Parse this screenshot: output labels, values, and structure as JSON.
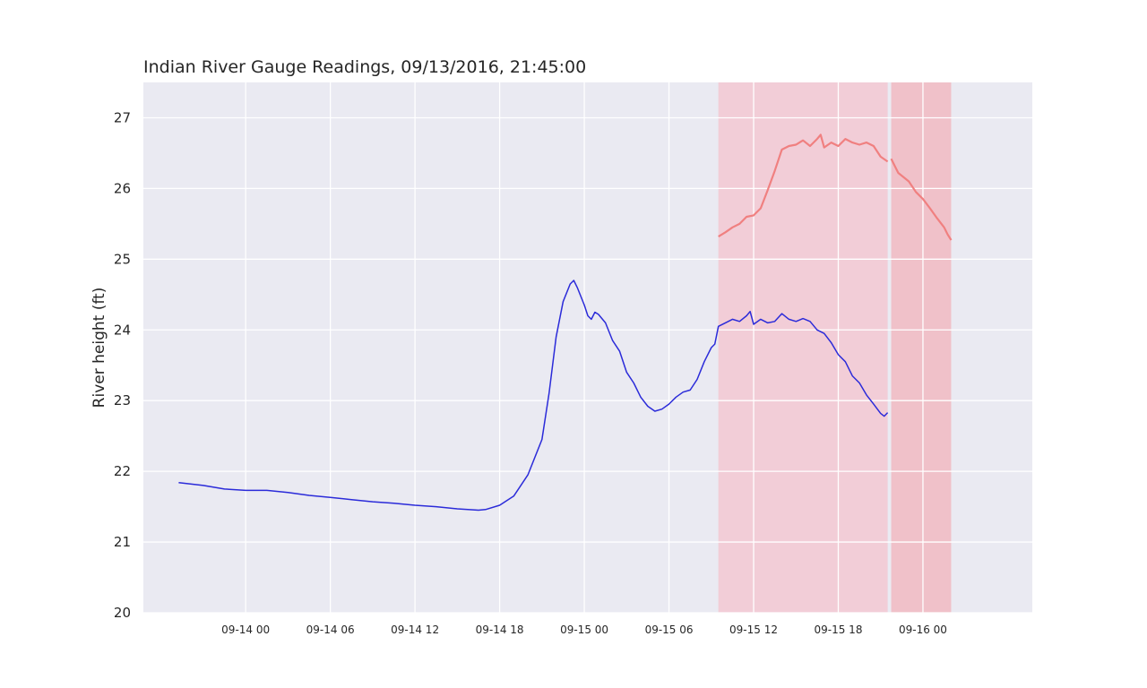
{
  "colors": {
    "plot_bg": "#eaeaf2",
    "grid": "#ffffff",
    "observed": "#2b2bd9",
    "forecast": "#f08080",
    "band_1": "#f4c3cd",
    "band_2": "#f1b3bb"
  },
  "chart_data": {
    "type": "line",
    "title": "Indian River Gauge Readings, 09/13/2016, 21:45:00",
    "xlabel": "",
    "ylabel": "River height (ft)",
    "xlim": [
      "2016-09-13 16:45",
      "2016-09-16 07:45"
    ],
    "ylim": [
      20,
      27.5
    ],
    "grid": true,
    "legend": "none",
    "x_ticks": [
      "2016-09-14 00:00",
      "2016-09-14 06:00",
      "2016-09-14 12:00",
      "2016-09-14 18:00",
      "2016-09-15 00:00",
      "2016-09-15 06:00",
      "2016-09-15 12:00",
      "2016-09-15 18:00",
      "2016-09-16 00:00"
    ],
    "x_tick_labels": [
      "09-14 00",
      "09-14 06",
      "09-14 12",
      "09-14 18",
      "09-15 00",
      "09-15 06",
      "09-15 12",
      "09-15 18",
      "09-16 00"
    ],
    "y_ticks": [
      20,
      21,
      22,
      23,
      24,
      25,
      26,
      27
    ],
    "y_tick_labels": [
      "20",
      "21",
      "22",
      "23",
      "24",
      "25",
      "26",
      "27"
    ],
    "shaded_regions": [
      {
        "x_start": "2016-09-15 09:30",
        "x_end": "2016-09-15 21:30",
        "color": "band_1"
      },
      {
        "x_start": "2016-09-15 21:45",
        "x_end": "2016-09-16 02:00",
        "color": "band_2"
      }
    ],
    "series": [
      {
        "color": "observed",
        "points": [
          [
            "2016-09-13 19:15",
            21.84
          ],
          [
            "2016-09-13 21:00",
            21.8
          ],
          [
            "2016-09-13 22:30",
            21.75
          ],
          [
            "2016-09-14 00:00",
            21.73
          ],
          [
            "2016-09-14 01:30",
            21.73
          ],
          [
            "2016-09-14 03:00",
            21.7
          ],
          [
            "2016-09-14 04:30",
            21.66
          ],
          [
            "2016-09-14 06:00",
            21.63
          ],
          [
            "2016-09-14 07:30",
            21.6
          ],
          [
            "2016-09-14 09:00",
            21.57
          ],
          [
            "2016-09-14 10:30",
            21.55
          ],
          [
            "2016-09-14 12:00",
            21.52
          ],
          [
            "2016-09-14 13:30",
            21.5
          ],
          [
            "2016-09-14 15:00",
            21.47
          ],
          [
            "2016-09-14 16:30",
            21.45
          ],
          [
            "2016-09-14 17:00",
            21.46
          ],
          [
            "2016-09-14 18:00",
            21.52
          ],
          [
            "2016-09-14 19:00",
            21.65
          ],
          [
            "2016-09-14 20:00",
            21.95
          ],
          [
            "2016-09-14 21:00",
            22.45
          ],
          [
            "2016-09-14 21:30",
            23.1
          ],
          [
            "2016-09-14 22:00",
            23.9
          ],
          [
            "2016-09-14 22:30",
            24.4
          ],
          [
            "2016-09-14 23:00",
            24.65
          ],
          [
            "2016-09-14 23:15",
            24.7
          ],
          [
            "2016-09-14 23:30",
            24.6
          ],
          [
            "2016-09-15 00:00",
            24.35
          ],
          [
            "2016-09-15 00:15",
            24.2
          ],
          [
            "2016-09-15 00:30",
            24.15
          ],
          [
            "2016-09-15 00:45",
            24.25
          ],
          [
            "2016-09-15 01:00",
            24.22
          ],
          [
            "2016-09-15 01:30",
            24.1
          ],
          [
            "2016-09-15 02:00",
            23.85
          ],
          [
            "2016-09-15 02:30",
            23.7
          ],
          [
            "2016-09-15 03:00",
            23.4
          ],
          [
            "2016-09-15 03:30",
            23.25
          ],
          [
            "2016-09-15 04:00",
            23.05
          ],
          [
            "2016-09-15 04:30",
            22.92
          ],
          [
            "2016-09-15 05:00",
            22.85
          ],
          [
            "2016-09-15 05:30",
            22.88
          ],
          [
            "2016-09-15 06:00",
            22.95
          ],
          [
            "2016-09-15 06:30",
            23.05
          ],
          [
            "2016-09-15 07:00",
            23.12
          ],
          [
            "2016-09-15 07:30",
            23.15
          ],
          [
            "2016-09-15 08:00",
            23.3
          ],
          [
            "2016-09-15 08:30",
            23.55
          ],
          [
            "2016-09-15 09:00",
            23.75
          ],
          [
            "2016-09-15 09:15",
            23.8
          ],
          [
            "2016-09-15 09:30",
            24.05
          ],
          [
            "2016-09-15 10:00",
            24.1
          ],
          [
            "2016-09-15 10:30",
            24.15
          ],
          [
            "2016-09-15 11:00",
            24.12
          ],
          [
            "2016-09-15 11:30",
            24.2
          ],
          [
            "2016-09-15 11:45",
            24.26
          ],
          [
            "2016-09-15 12:00",
            24.08
          ],
          [
            "2016-09-15 12:30",
            24.15
          ],
          [
            "2016-09-15 13:00",
            24.1
          ],
          [
            "2016-09-15 13:30",
            24.12
          ],
          [
            "2016-09-15 14:00",
            24.23
          ],
          [
            "2016-09-15 14:30",
            24.15
          ],
          [
            "2016-09-15 15:00",
            24.12
          ],
          [
            "2016-09-15 15:30",
            24.16
          ],
          [
            "2016-09-15 16:00",
            24.12
          ],
          [
            "2016-09-15 16:30",
            24.0
          ],
          [
            "2016-09-15 17:00",
            23.95
          ],
          [
            "2016-09-15 17:30",
            23.82
          ],
          [
            "2016-09-15 18:00",
            23.65
          ],
          [
            "2016-09-15 18:30",
            23.55
          ],
          [
            "2016-09-15 19:00",
            23.35
          ],
          [
            "2016-09-15 19:30",
            23.25
          ],
          [
            "2016-09-15 20:00",
            23.08
          ],
          [
            "2016-09-15 20:30",
            22.95
          ],
          [
            "2016-09-15 21:00",
            22.82
          ],
          [
            "2016-09-15 21:15",
            22.78
          ],
          [
            "2016-09-15 21:30",
            22.83
          ]
        ]
      },
      {
        "color": "forecast",
        "points": [
          [
            "2016-09-15 09:30",
            25.32
          ],
          [
            "2016-09-15 10:00",
            25.38
          ],
          [
            "2016-09-15 10:30",
            25.45
          ],
          [
            "2016-09-15 11:00",
            25.5
          ],
          [
            "2016-09-15 11:30",
            25.6
          ],
          [
            "2016-09-15 12:00",
            25.62
          ],
          [
            "2016-09-15 12:30",
            25.72
          ],
          [
            "2016-09-15 13:00",
            25.98
          ],
          [
            "2016-09-15 13:30",
            26.25
          ],
          [
            "2016-09-15 14:00",
            26.55
          ],
          [
            "2016-09-15 14:30",
            26.6
          ],
          [
            "2016-09-15 15:00",
            26.62
          ],
          [
            "2016-09-15 15:30",
            26.68
          ],
          [
            "2016-09-15 16:00",
            26.6
          ],
          [
            "2016-09-15 16:30",
            26.7
          ],
          [
            "2016-09-15 16:45",
            26.76
          ],
          [
            "2016-09-15 17:00",
            26.58
          ],
          [
            "2016-09-15 17:30",
            26.65
          ],
          [
            "2016-09-15 18:00",
            26.6
          ],
          [
            "2016-09-15 18:30",
            26.7
          ],
          [
            "2016-09-15 19:00",
            26.65
          ],
          [
            "2016-09-15 19:30",
            26.62
          ],
          [
            "2016-09-15 20:00",
            26.65
          ],
          [
            "2016-09-15 20:30",
            26.6
          ],
          [
            "2016-09-15 21:00",
            26.45
          ],
          [
            "2016-09-15 21:30",
            26.38
          ]
        ]
      },
      {
        "color": "forecast",
        "points": [
          [
            "2016-09-15 21:45",
            26.42
          ],
          [
            "2016-09-15 22:15",
            26.22
          ],
          [
            "2016-09-15 23:00",
            26.1
          ],
          [
            "2016-09-15 23:30",
            25.95
          ],
          [
            "2016-09-16 00:00",
            25.85
          ],
          [
            "2016-09-16 00:30",
            25.72
          ],
          [
            "2016-09-16 01:00",
            25.58
          ],
          [
            "2016-09-16 01:30",
            25.45
          ],
          [
            "2016-09-16 01:45",
            25.35
          ],
          [
            "2016-09-16 02:00",
            25.27
          ]
        ]
      }
    ]
  }
}
